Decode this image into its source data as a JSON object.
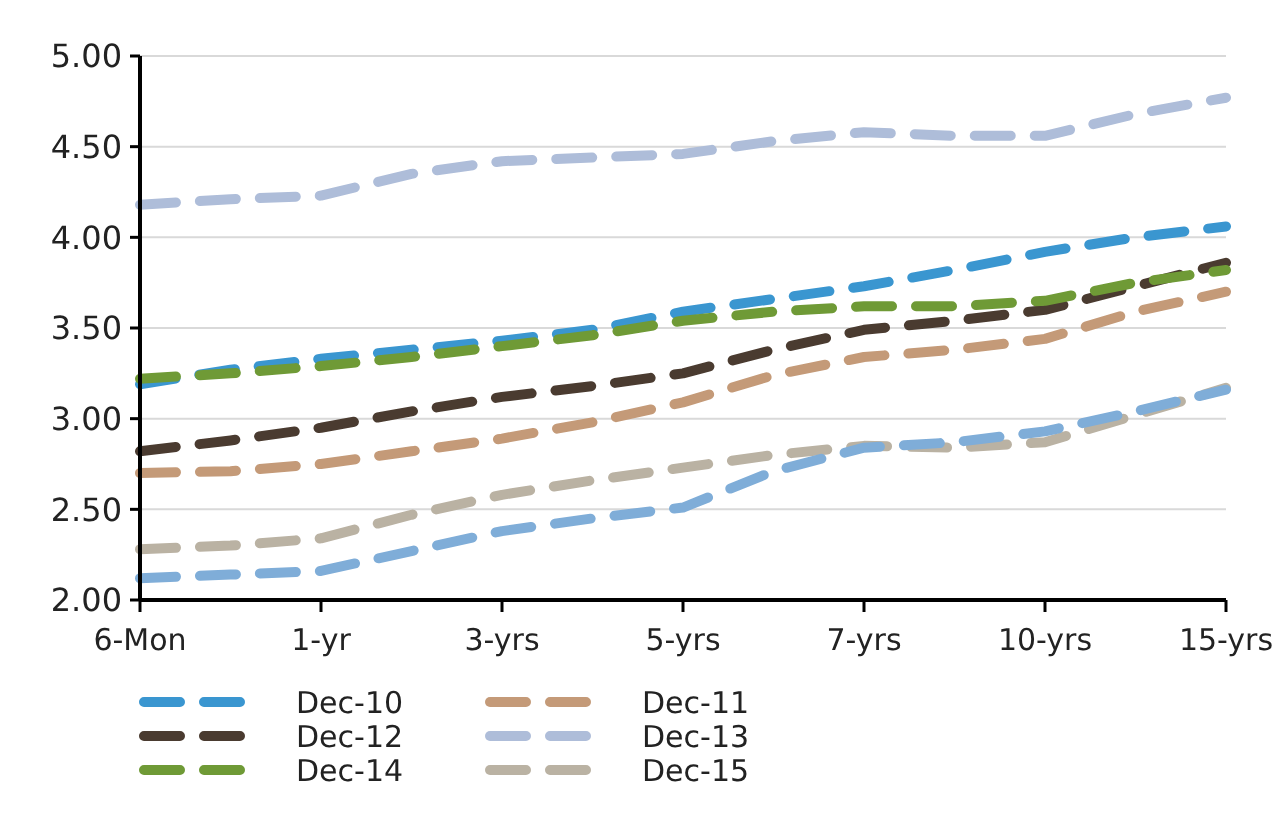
{
  "chart_data": {
    "type": "line",
    "categories": [
      "6-Mon",
      null,
      "1-yr",
      null,
      "3-yrs",
      null,
      "5-yrs",
      null,
      "7-yrs",
      null,
      "10-yrs",
      null,
      "15-yrs"
    ],
    "series": [
      {
        "name": "Dec-10",
        "color": "#3a96d0",
        "values": [
          3.19,
          3.27,
          3.33,
          3.38,
          3.43,
          3.49,
          3.59,
          3.66,
          3.73,
          3.82,
          3.92,
          4.0,
          4.06
        ]
      },
      {
        "name": "Dec-11",
        "color": "#c49a78",
        "values": [
          2.7,
          2.71,
          2.75,
          2.82,
          2.89,
          2.98,
          3.09,
          3.24,
          3.34,
          3.38,
          3.44,
          3.59,
          3.7
        ]
      },
      {
        "name": "Dec-12",
        "color": "#4a3b30",
        "values": [
          2.82,
          2.88,
          2.95,
          3.04,
          3.12,
          3.18,
          3.25,
          3.38,
          3.49,
          3.54,
          3.6,
          3.73,
          3.86
        ]
      },
      {
        "name": "Dec-13",
        "color": "#aebdd9",
        "values": [
          4.18,
          4.21,
          4.23,
          4.35,
          4.42,
          4.44,
          4.46,
          4.53,
          4.58,
          4.56,
          4.56,
          4.68,
          4.77
        ]
      },
      {
        "name": "Dec-14",
        "color": "#6f9a36",
        "values": [
          3.22,
          3.25,
          3.29,
          3.34,
          3.4,
          3.46,
          3.54,
          3.59,
          3.62,
          3.62,
          3.65,
          3.75,
          3.82
        ]
      },
      {
        "name": "Dec-15",
        "color": "#bab2a3",
        "values": [
          2.28,
          2.3,
          2.34,
          2.47,
          2.58,
          2.66,
          2.73,
          2.8,
          2.85,
          2.84,
          2.87,
          3.02,
          3.17
        ]
      },
      {
        "color": "#7fadd8",
        "values": [
          2.12,
          2.14,
          2.16,
          2.27,
          2.38,
          2.45,
          2.51,
          2.71,
          2.84,
          2.87,
          2.93,
          3.04,
          3.16
        ]
      }
    ],
    "ylim": [
      2,
      5
    ],
    "yticks": [
      {
        "value": 2,
        "label": "2.00"
      },
      {
        "value": 2.5,
        "label": "2.50"
      },
      {
        "value": 3,
        "label": "3.00"
      },
      {
        "value": 3.5,
        "label": "3.50"
      },
      {
        "value": 4,
        "label": "4.00"
      },
      {
        "value": 4.5,
        "label": "4.50"
      },
      {
        "value": 5,
        "label": "5.00"
      }
    ],
    "grid": "y",
    "legend": "bottom",
    "line_style": "dashed",
    "marker": "none"
  }
}
